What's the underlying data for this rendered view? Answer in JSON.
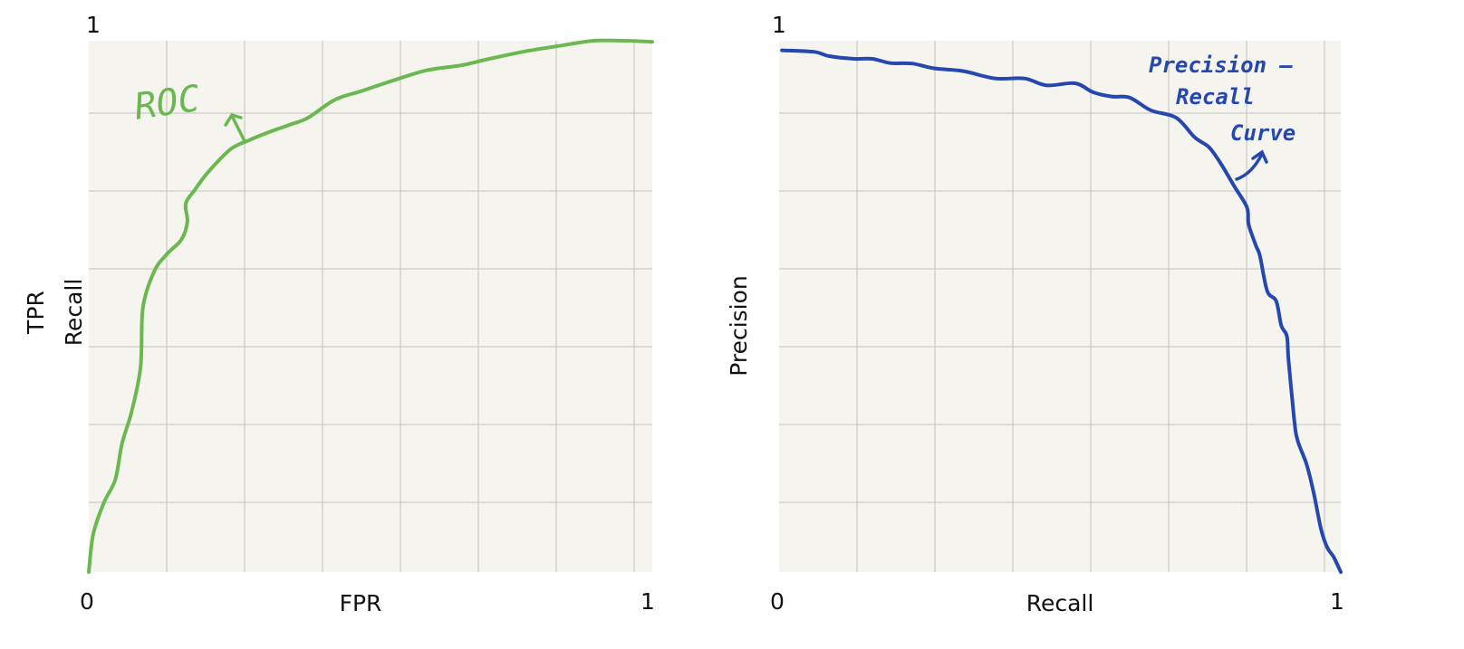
{
  "chart_data": [
    {
      "type": "line",
      "title": "",
      "xlabel": "FPR",
      "ylabel": [
        "TPR",
        "Recall"
      ],
      "xlim": [
        0,
        1
      ],
      "ylim": [
        0,
        1
      ],
      "x_tick_labels": [
        "0",
        "1"
      ],
      "y_tick_labels": [
        "1"
      ],
      "grid": true,
      "color": "#6ab84f",
      "annotation": "ROC",
      "series": [
        {
          "x": [
            0,
            0.008,
            0.027,
            0.047,
            0.059,
            0.076,
            0.092,
            0.096,
            0.116,
            0.14,
            0.164,
            0.175,
            0.172,
            0.188,
            0.212,
            0.252,
            0.285,
            0.325,
            0.357,
            0.389,
            0.437,
            0.486,
            0.534,
            0.598,
            0.662,
            0.711,
            0.775,
            0.839,
            0.896,
            0.952,
            1.0
          ],
          "y": [
            0,
            0.072,
            0.131,
            0.174,
            0.242,
            0.302,
            0.387,
            0.497,
            0.566,
            0.6,
            0.625,
            0.659,
            0.693,
            0.719,
            0.753,
            0.796,
            0.813,
            0.83,
            0.842,
            0.855,
            0.889,
            0.906,
            0.923,
            0.944,
            0.954,
            0.966,
            0.98,
            0.991,
            1.0,
            1.0,
            0.998
          ]
        }
      ]
    },
    {
      "type": "line",
      "title": "",
      "xlabel": "Recall",
      "ylabel": "Precision",
      "xlim": [
        0,
        1
      ],
      "ylim": [
        0,
        1
      ],
      "x_tick_labels": [
        "0",
        "1"
      ],
      "y_tick_labels": [
        "1"
      ],
      "grid": true,
      "color": "#2447b0",
      "annotation": [
        "Precision –",
        "Recall",
        "Curve"
      ],
      "series": [
        {
          "x": [
            0.005,
            0.063,
            0.089,
            0.134,
            0.166,
            0.198,
            0.237,
            0.276,
            0.327,
            0.385,
            0.437,
            0.476,
            0.527,
            0.559,
            0.592,
            0.624,
            0.662,
            0.707,
            0.74,
            0.765,
            0.785,
            0.811,
            0.833,
            0.836,
            0.849,
            0.856,
            0.869,
            0.885,
            0.894,
            0.904,
            0.907,
            0.917,
            0.923,
            0.939,
            0.952,
            0.965,
            0.976,
            0.987,
            0.997,
            1.0
          ],
          "y": [
            0.982,
            0.979,
            0.971,
            0.966,
            0.966,
            0.958,
            0.957,
            0.948,
            0.943,
            0.929,
            0.929,
            0.916,
            0.92,
            0.903,
            0.895,
            0.893,
            0.869,
            0.855,
            0.818,
            0.8,
            0.771,
            0.725,
            0.686,
            0.654,
            0.614,
            0.595,
            0.529,
            0.51,
            0.464,
            0.444,
            0.399,
            0.288,
            0.248,
            0.203,
            0.148,
            0.08,
            0.046,
            0.029,
            0.007,
            0
          ]
        }
      ]
    }
  ]
}
